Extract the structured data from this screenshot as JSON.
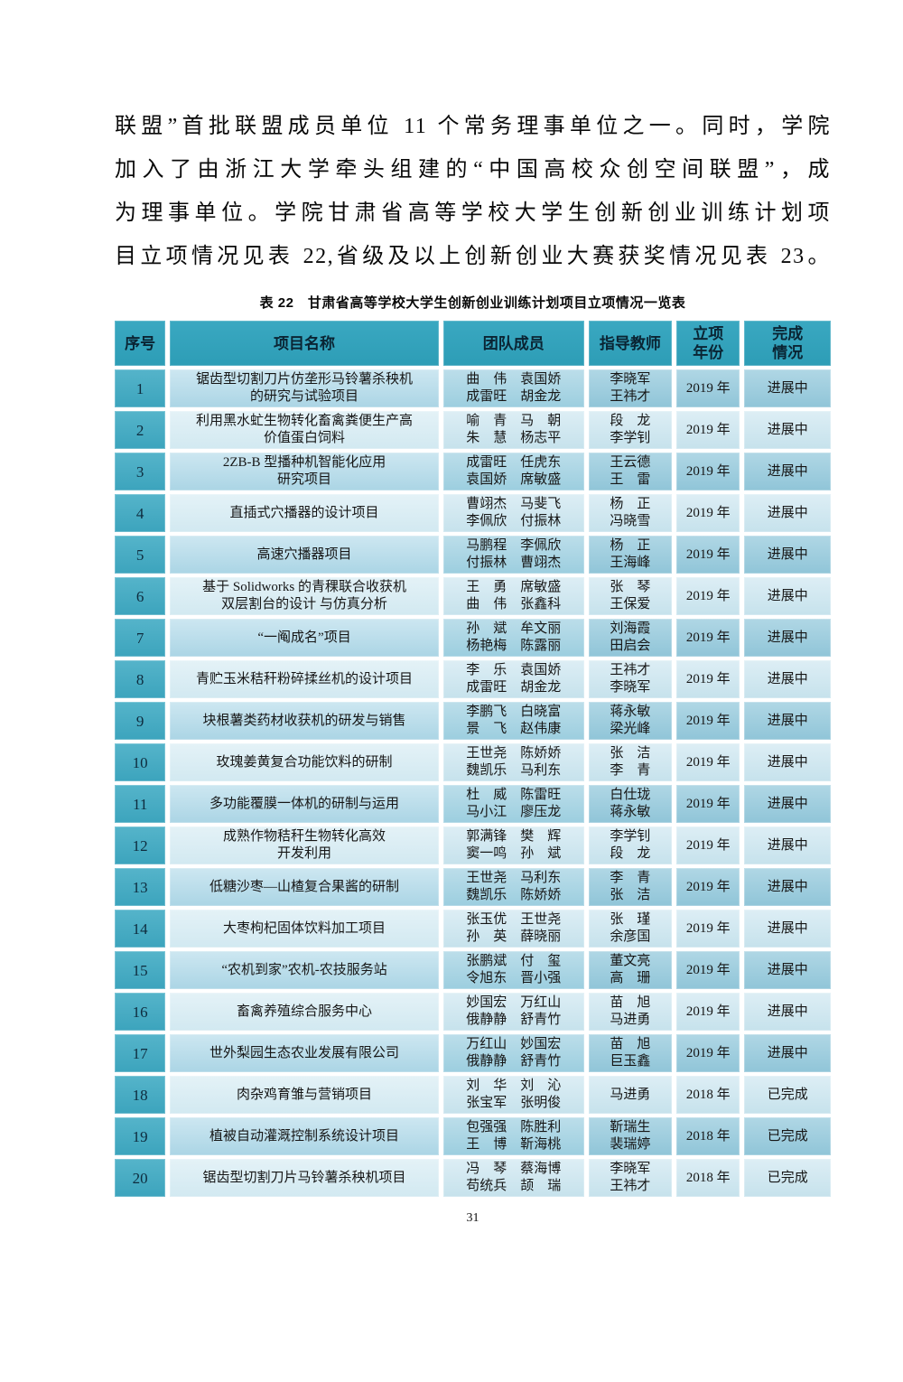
{
  "colors": {
    "header_bg": "#31a1ba",
    "index_bg": "#49acc4",
    "row_odd_bg": "#9ecddf",
    "row_even_bg": "#d4e9f1",
    "text": "#141414"
  },
  "content": {
    "paragraph_lines": [
      "联盟”首批联盟成员单位 11 个常务理事单位之一。同时，学院",
      "加入了由浙江大学牵头组建的“中国高校众创空间联盟”，成",
      "为理事单位。学院甘肃省高等学校大学生创新创业训练计划项",
      "目立项情况见表 22,省级及以上创新创业大赛获奖情况见表 23。"
    ],
    "table_caption": "表 22　甘肃省高等学校大学生创新创业训练计划项目立项情况一览表",
    "page_number": "31"
  },
  "table": {
    "headers": [
      "序号",
      "项目名称",
      "团队成员",
      "指导教师",
      "立项\n年份",
      "完成\n情况"
    ],
    "rows": [
      {
        "no": "1",
        "project": "锯齿型切割刀片仿垄形马铃薯杀秧机\n的研究与试验项目",
        "team": "曲　伟　袁国娇\n成雷旺　胡金龙",
        "advisor": "李晓军\n王祎才",
        "year": "2019 年",
        "status": "进展中"
      },
      {
        "no": "2",
        "project": "利用黑水虻生物转化畜禽粪便生产高\n价值蛋白饲料",
        "team": "喻　青　马　朝\n朱　慧　杨志平",
        "advisor": "段　龙\n李学钊",
        "year": "2019 年",
        "status": "进展中"
      },
      {
        "no": "3",
        "project": "2ZB-B 型播种机智能化应用\n研究项目",
        "team": "成雷旺　任虎东\n袁国娇　席敏盛",
        "advisor": "王云德\n王　雷",
        "year": "2019 年",
        "status": "进展中"
      },
      {
        "no": "4",
        "project": "直插式穴播器的设计项目",
        "team": "曹翊杰　马斐飞\n李佩欣　付振林",
        "advisor": "杨　正\n冯晓雪",
        "year": "2019 年",
        "status": "进展中"
      },
      {
        "no": "5",
        "project": "高速穴播器项目",
        "team": "马鹏程　李佩欣\n付振林　曹翊杰",
        "advisor": "杨　正\n王海峰",
        "year": "2019 年",
        "status": "进展中"
      },
      {
        "no": "6",
        "project": "基于 Solidworks 的青稞联合收获机\n双层割台的设计 与仿真分析",
        "team": "王　勇　席敏盛\n曲　伟　张鑫科",
        "advisor": "张　琴\n王保爱",
        "year": "2019 年",
        "status": "进展中"
      },
      {
        "no": "7",
        "project": "“一阄成名”项目",
        "team": "孙　斌　牟文丽\n杨艳梅　陈露丽",
        "advisor": "刘海霞\n田启会",
        "year": "2019 年",
        "status": "进展中"
      },
      {
        "no": "8",
        "project": "青贮玉米秸秆粉碎揉丝机的设计项目",
        "team": "李　乐　袁国娇\n成雷旺　胡金龙",
        "advisor": "王祎才\n李晓军",
        "year": "2019 年",
        "status": "进展中"
      },
      {
        "no": "9",
        "project": "块根薯类药材收获机的研发与销售",
        "team": "李鹏飞　白晓富\n景　飞　赵伟康",
        "advisor": "蒋永敏\n梁光峰",
        "year": "2019 年",
        "status": "进展中"
      },
      {
        "no": "10",
        "project": "玫瑰姜黄复合功能饮料的研制",
        "team": "王世尧　陈娇娇\n魏凯乐　马利东",
        "advisor": "张　洁\n李　青",
        "year": "2019 年",
        "status": "进展中"
      },
      {
        "no": "11",
        "project": "多功能覆膜一体机的研制与运用",
        "team": "杜　威　陈雷旺\n马小江　廖压龙",
        "advisor": "白仕珑\n蒋永敏",
        "year": "2019 年",
        "status": "进展中"
      },
      {
        "no": "12",
        "project": "成熟作物秸秆生物转化高效\n开发利用",
        "team": "郭满锋　樊　辉\n窦一鸣　孙　斌",
        "advisor": "李学钊\n段　龙",
        "year": "2019 年",
        "status": "进展中"
      },
      {
        "no": "13",
        "project": "低糖沙枣—山楂复合果酱的研制",
        "team": "王世尧　马利东\n魏凯乐　陈娇娇",
        "advisor": "李　青\n张　洁",
        "year": "2019 年",
        "status": "进展中"
      },
      {
        "no": "14",
        "project": "大枣枸杞固体饮料加工项目",
        "team": "张玉优　王世尧\n孙　英　薛晓丽",
        "advisor": "张　瑾\n余彦国",
        "year": "2019 年",
        "status": "进展中"
      },
      {
        "no": "15",
        "project": "“农机到家”农机-农技服务站",
        "team": "张鹏斌　付　玺\n令旭东　晋小强",
        "advisor": "董文亮\n高　珊",
        "year": "2019 年",
        "status": "进展中"
      },
      {
        "no": "16",
        "project": "畜禽养殖综合服务中心",
        "team": "妙国宏　万红山\n俄静静　舒青竹",
        "advisor": "苗　旭\n马进勇",
        "year": "2019 年",
        "status": "进展中"
      },
      {
        "no": "17",
        "project": "世外梨园生态农业发展有限公司",
        "team": "万红山　妙国宏\n俄静静　舒青竹",
        "advisor": "苗　旭\n巨玉鑫",
        "year": "2019 年",
        "status": "进展中"
      },
      {
        "no": "18",
        "project": "肉杂鸡育雏与营销项目",
        "team": "刘　华　刘　沁\n张宝军　张明俊",
        "advisor": "马进勇",
        "year": "2018 年",
        "status": "已完成"
      },
      {
        "no": "19",
        "project": "植被自动灌溉控制系统设计项目",
        "team": "包强强　陈胜利\n王　博　靳海桃",
        "advisor": "靳瑞生\n裴瑞婷",
        "year": "2018 年",
        "status": "已完成"
      },
      {
        "no": "20",
        "project": "锯齿型切割刀片马铃薯杀秧机项目",
        "team": "冯　琴　蔡海博\n苟统兵　颉　瑞",
        "advisor": "李晓军\n王祎才",
        "year": "2018 年",
        "status": "已完成"
      }
    ]
  }
}
